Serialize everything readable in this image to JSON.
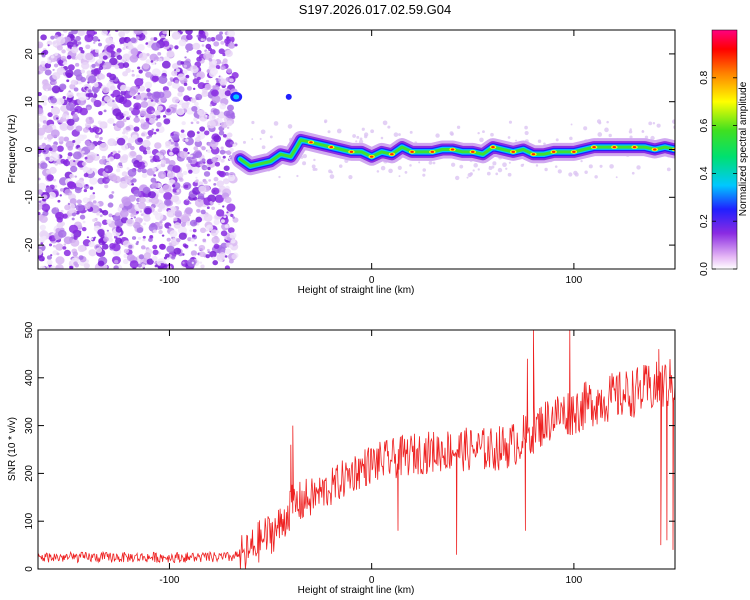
{
  "title": "S197.2026.017.02.59.G04",
  "chart_data": [
    {
      "type": "heatmap",
      "name": "spectrogram",
      "xlabel": "Height of straight line (km)",
      "ylabel": "Frequency (Hz)",
      "xlim": [
        -165,
        150
      ],
      "ylim": [
        -25,
        25
      ],
      "xticks": [
        -100,
        0,
        100
      ],
      "yticks": [
        -20,
        -10,
        0,
        10,
        20
      ],
      "colorbar": {
        "label": "Normalized spectral amplitude",
        "range": [
          0,
          1
        ],
        "ticks": [
          0.0,
          0.2,
          0.4,
          0.6,
          0.8
        ],
        "tick_labels": [
          "0.0",
          "0.2",
          "0.4",
          "0.6",
          "0.8"
        ],
        "colormap": [
          "#ffffff",
          "#e6b8f5",
          "#8a2be2",
          "#2020ff",
          "#00c8ff",
          "#00e070",
          "#40e020",
          "#ffff00",
          "#ff8000",
          "#ff0000",
          "#ff0080"
        ]
      },
      "noise_region_x": [
        -165,
        -67
      ],
      "signal_path": {
        "x": [
          -65,
          -60,
          -55,
          -50,
          -45,
          -40,
          -37,
          -35,
          -30,
          -25,
          -20,
          -15,
          -10,
          -5,
          0,
          5,
          10,
          15,
          20,
          25,
          30,
          35,
          40,
          45,
          50,
          55,
          60,
          65,
          70,
          75,
          80,
          85,
          90,
          95,
          100,
          105,
          110,
          115,
          120,
          125,
          130,
          135,
          140,
          145,
          150
        ],
        "y": [
          -2,
          -3.5,
          -3,
          -2.5,
          -1,
          -1.5,
          0.5,
          2,
          1.5,
          1,
          0.5,
          0,
          -0.5,
          -0.5,
          -1.5,
          -0.5,
          -1,
          0.5,
          -0.5,
          -0.5,
          -0.5,
          0,
          0,
          -0.5,
          -0.5,
          -1,
          0.5,
          0,
          -0.5,
          0,
          -1,
          -1,
          -0.5,
          -0.5,
          -0.5,
          0,
          0.5,
          0.5,
          0.5,
          0.5,
          0.5,
          0.5,
          0,
          0.5,
          0
        ]
      },
      "isolated_blobs": [
        {
          "x": -67,
          "y": 11
        },
        {
          "x": -41,
          "y": 11
        }
      ]
    },
    {
      "type": "line",
      "name": "snr",
      "xlabel": "Height of straight line (km)",
      "ylabel": "SNR (10 * v/v)",
      "xlim": [
        -165,
        150
      ],
      "ylim": [
        0,
        500
      ],
      "xticks": [
        -100,
        0,
        100
      ],
      "yticks": [
        0,
        100,
        200,
        300,
        400,
        500
      ],
      "color": "#ee2222",
      "trend": {
        "x": [
          -165,
          -70,
          -62,
          -55,
          -45,
          -40,
          -30,
          -20,
          -10,
          0,
          20,
          40,
          60,
          70,
          80,
          90,
          100,
          110,
          120,
          130,
          140,
          150
        ],
        "y": [
          20,
          20,
          30,
          60,
          90,
          130,
          150,
          170,
          200,
          220,
          240,
          250,
          250,
          260,
          290,
          320,
          330,
          350,
          360,
          370,
          380,
          390
        ]
      },
      "spikes": [
        {
          "x": -39,
          "y": 300
        },
        {
          "x": -40,
          "y": 260
        },
        {
          "x": 77,
          "y": 440
        },
        {
          "x": 80,
          "y": 500
        },
        {
          "x": 98,
          "y": 500
        },
        {
          "x": 142,
          "y": 460
        }
      ],
      "dips": [
        {
          "x": 42,
          "y": 30
        },
        {
          "x": 76,
          "y": 80
        },
        {
          "x": 143,
          "y": 50
        },
        {
          "x": 146,
          "y": 60
        },
        {
          "x": 149,
          "y": 40
        },
        {
          "x": 13,
          "y": 80
        }
      ]
    }
  ]
}
